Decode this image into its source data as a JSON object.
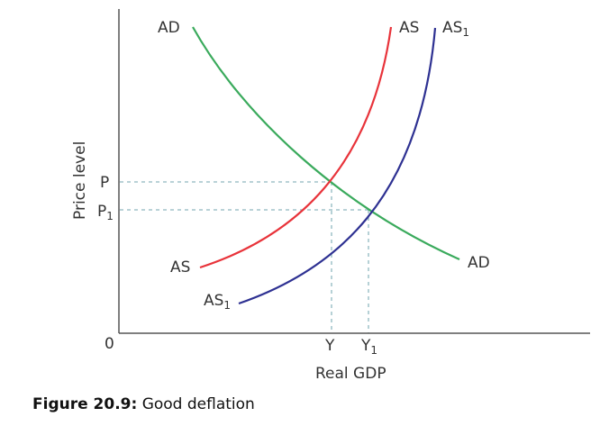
{
  "figure": {
    "caption_label": "Figure 20.9:",
    "caption_text": " Good deflation",
    "y_axis_label": "Price level",
    "x_axis_label": "Real GDP",
    "origin_label": "0",
    "price_ticks": [
      {
        "main": "P",
        "sub": ""
      },
      {
        "main": "P",
        "sub": "1"
      }
    ],
    "output_ticks": [
      {
        "main": "Y",
        "sub": ""
      },
      {
        "main": "Y",
        "sub": "1"
      }
    ],
    "curves": [
      {
        "name": "AD",
        "sub": "",
        "color": "#3aaa5c"
      },
      {
        "name": "AS",
        "sub": "",
        "color": "#e8333a"
      },
      {
        "name": "AS",
        "sub": "1",
        "color": "#2e3192"
      }
    ],
    "guide_color": "#8fb8bf"
  }
}
